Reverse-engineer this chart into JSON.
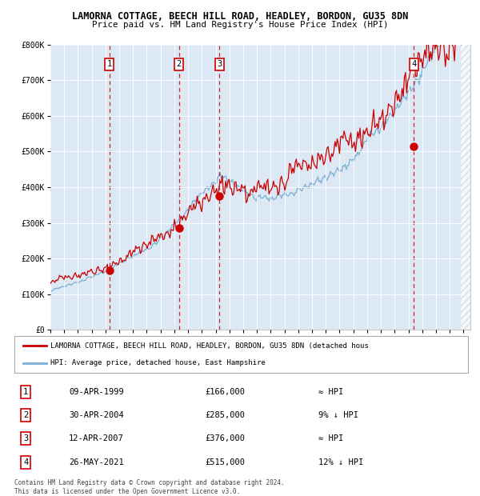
{
  "title": "LAMORNA COTTAGE, BEECH HILL ROAD, HEADLEY, BORDON, GU35 8DN",
  "subtitle": "Price paid vs. HM Land Registry's House Price Index (HPI)",
  "background_color": "#dce9f5",
  "red_line_color": "#cc0000",
  "blue_line_color": "#7aafd4",
  "sale_marker_color": "#cc0000",
  "vline_color": "#cc0000",
  "ylim": [
    0,
    800000
  ],
  "yticks": [
    0,
    100000,
    200000,
    300000,
    400000,
    500000,
    600000,
    700000,
    800000
  ],
  "ytick_labels": [
    "£0",
    "£100K",
    "£200K",
    "£300K",
    "£400K",
    "£500K",
    "£600K",
    "£700K",
    "£800K"
  ],
  "sales": [
    {
      "year": 1999.274,
      "price": 166000,
      "label": "1"
    },
    {
      "year": 2004.329,
      "price": 285000,
      "label": "2"
    },
    {
      "year": 2007.278,
      "price": 376000,
      "label": "3"
    },
    {
      "year": 2021.397,
      "price": 515000,
      "label": "4"
    }
  ],
  "table_rows": [
    {
      "num": "1",
      "date": "09-APR-1999",
      "price": "£166,000",
      "vs_hpi": "≈ HPI"
    },
    {
      "num": "2",
      "date": "30-APR-2004",
      "price": "£285,000",
      "vs_hpi": "9% ↓ HPI"
    },
    {
      "num": "3",
      "date": "12-APR-2007",
      "price": "£376,000",
      "vs_hpi": "≈ HPI"
    },
    {
      "num": "4",
      "date": "26-MAY-2021",
      "price": "£515,000",
      "vs_hpi": "12% ↓ HPI"
    }
  ],
  "legend_red": "LAMORNA COTTAGE, BEECH HILL ROAD, HEADLEY, BORDON, GU35 8DN (detached hous",
  "legend_blue": "HPI: Average price, detached house, East Hampshire",
  "footnote": "Contains HM Land Registry data © Crown copyright and database right 2024.\nThis data is licensed under the Open Government Licence v3.0.",
  "xstart": 1995.0,
  "xend": 2025.5
}
